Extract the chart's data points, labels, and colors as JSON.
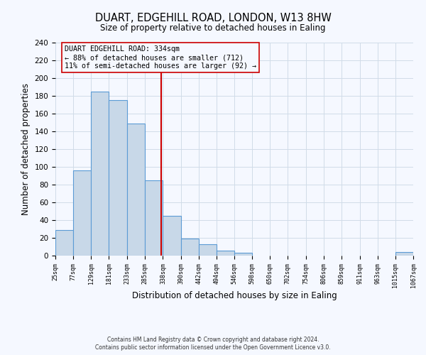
{
  "title": "DUART, EDGEHILL ROAD, LONDON, W13 8HW",
  "subtitle": "Size of property relative to detached houses in Ealing",
  "xlabel": "Distribution of detached houses by size in Ealing",
  "ylabel": "Number of detached properties",
  "bin_edges": [
    25,
    77,
    129,
    181,
    233,
    285,
    338,
    390,
    442,
    494,
    546,
    598,
    650,
    702,
    754,
    806,
    859,
    911,
    963,
    1015,
    1067
  ],
  "counts": [
    29,
    96,
    185,
    175,
    149,
    85,
    45,
    19,
    13,
    6,
    3,
    0,
    0,
    0,
    0,
    0,
    0,
    0,
    0,
    4
  ],
  "bar_color": "#c8d8e8",
  "bar_edge_color": "#5b9bd5",
  "property_line_x": 334,
  "property_line_color": "#cc0000",
  "annotation_line1": "DUART EDGEHILL ROAD: 334sqm",
  "annotation_line2": "← 88% of detached houses are smaller (712)",
  "annotation_line3": "11% of semi-detached houses are larger (92) →",
  "annotation_box_edge_color": "#cc0000",
  "ylim": [
    0,
    240
  ],
  "yticks": [
    0,
    20,
    40,
    60,
    80,
    100,
    120,
    140,
    160,
    180,
    200,
    220,
    240
  ],
  "tick_labels": [
    "25sqm",
    "77sqm",
    "129sqm",
    "181sqm",
    "233sqm",
    "285sqm",
    "338sqm",
    "390sqm",
    "442sqm",
    "494sqm",
    "546sqm",
    "598sqm",
    "650sqm",
    "702sqm",
    "754sqm",
    "806sqm",
    "859sqm",
    "911sqm",
    "963sqm",
    "1015sqm",
    "1067sqm"
  ],
  "footer_line1": "Contains HM Land Registry data © Crown copyright and database right 2024.",
  "footer_line2": "Contains public sector information licensed under the Open Government Licence v3.0.",
  "grid_color": "#d0dce8",
  "background_color": "#f5f8ff"
}
